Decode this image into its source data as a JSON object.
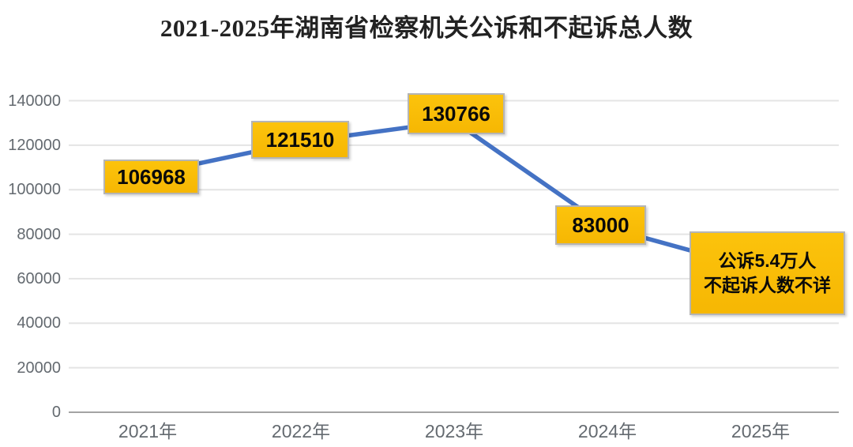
{
  "title": "2021-2025年湖南省检察机关公诉和不起诉总人数",
  "labels": {
    "p2021": "106968",
    "p2022": "121510",
    "p2023": "130766",
    "p2024": "83000",
    "p2025_line1": "公诉5.4万人",
    "p2025_line2": "不起诉人数不详"
  },
  "chart_data": {
    "type": "line",
    "title": "2021-2025年湖南省检察机关公诉和不起诉总人数",
    "categories": [
      "2021年",
      "2022年",
      "2023年",
      "2024年",
      "2025年"
    ],
    "series": [
      {
        "name": "公诉和不起诉总人数",
        "values": [
          106968,
          121510,
          130766,
          83000,
          64000
        ]
      }
    ],
    "point_labels": [
      "106968",
      "121510",
      "130766",
      "83000",
      "公诉5.4万人 不起诉人数不详"
    ],
    "note_2025": "2025年数据点被标注框遮挡；标注文字：公诉5.4万人 / 不起诉人数不详；绘制端点约64000（按网格线估读）",
    "xlabel": "",
    "ylabel": "",
    "ylim": [
      0,
      140000
    ],
    "yticks": [
      0,
      20000,
      40000,
      60000,
      80000,
      100000,
      120000,
      140000
    ],
    "grid": "horizontal",
    "legend": "none",
    "colors": {
      "line": "#4472C4",
      "label_box_fill": "#FBBC05",
      "label_box_border": "#b5b5b5",
      "label_text": "#0a0a0a",
      "axis_text": "#646a70",
      "gridline": "#e4e4e4",
      "axis_line": "#a3a3a3",
      "title_text": "#222222",
      "background": "#ffffff"
    }
  }
}
